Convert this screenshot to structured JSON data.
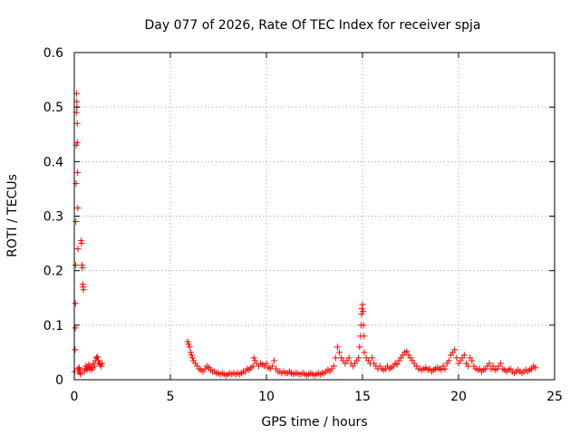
{
  "chart_data": {
    "type": "scatter",
    "title": "Day 077 of 2026, Rate Of TEC Index for receiver spja",
    "xlabel": "GPS time / hours",
    "ylabel": "ROTI / TECUs",
    "xlim": [
      0,
      25
    ],
    "ylim": [
      0,
      0.6
    ],
    "xticks": [
      0,
      5,
      10,
      15,
      20,
      25
    ],
    "yticks": [
      0,
      0.1,
      0.2,
      0.3,
      0.4,
      0.5,
      0.6
    ],
    "xtick_labels": [
      "0",
      "5",
      "10",
      "15",
      "20",
      "25"
    ],
    "ytick_labels": [
      "0",
      "0.1",
      "0.2",
      "0.3",
      "0.4",
      "0.5",
      "0.6"
    ],
    "grid": true,
    "marker": "+",
    "color": "#ff0000",
    "series": [
      {
        "points": [
          [
            0.02,
            0.015
          ],
          [
            0.04,
            0.055
          ],
          [
            0.05,
            0.095
          ],
          [
            0.06,
            0.14
          ],
          [
            0.07,
            0.21
          ],
          [
            0.08,
            0.29
          ],
          [
            0.09,
            0.36
          ],
          [
            0.1,
            0.43
          ],
          [
            0.11,
            0.49
          ],
          [
            0.12,
            0.525
          ],
          [
            0.13,
            0.51
          ],
          [
            0.14,
            0.5
          ],
          [
            0.15,
            0.47
          ],
          [
            0.16,
            0.435
          ],
          [
            0.17,
            0.38
          ],
          [
            0.18,
            0.315
          ],
          [
            0.19,
            0.24
          ],
          [
            0.2,
            0.02
          ],
          [
            0.22,
            0.015
          ],
          [
            0.25,
            0.022
          ],
          [
            0.28,
            0.018
          ],
          [
            0.3,
            0.012
          ],
          [
            0.32,
            0.01
          ],
          [
            0.35,
            0.255
          ],
          [
            0.38,
            0.25
          ],
          [
            0.4,
            0.21
          ],
          [
            0.42,
            0.205
          ],
          [
            0.44,
            0.175
          ],
          [
            0.46,
            0.17
          ],
          [
            0.48,
            0.165
          ],
          [
            0.52,
            0.015
          ],
          [
            0.55,
            0.02
          ],
          [
            0.6,
            0.025
          ],
          [
            0.65,
            0.018
          ],
          [
            0.7,
            0.022
          ],
          [
            0.75,
            0.028
          ],
          [
            0.8,
            0.02
          ],
          [
            0.85,
            0.025
          ],
          [
            0.9,
            0.018
          ],
          [
            0.95,
            0.022
          ],
          [
            1.0,
            0.03
          ],
          [
            1.05,
            0.025
          ],
          [
            1.1,
            0.035
          ],
          [
            1.15,
            0.04
          ],
          [
            1.2,
            0.042
          ],
          [
            1.25,
            0.035
          ],
          [
            1.3,
            0.03
          ],
          [
            1.35,
            0.028
          ],
          [
            1.4,
            0.025
          ],
          [
            1.45,
            0.03
          ],
          [
            5.9,
            0.07
          ],
          [
            5.95,
            0.065
          ],
          [
            6.0,
            0.06
          ],
          [
            6.05,
            0.05
          ],
          [
            6.1,
            0.045
          ],
          [
            6.15,
            0.04
          ],
          [
            6.2,
            0.035
          ],
          [
            6.3,
            0.03
          ],
          [
            6.4,
            0.025
          ],
          [
            6.5,
            0.02
          ],
          [
            6.6,
            0.018
          ],
          [
            6.7,
            0.015
          ],
          [
            6.8,
            0.02
          ],
          [
            6.9,
            0.025
          ],
          [
            7.0,
            0.022
          ],
          [
            7.1,
            0.018
          ],
          [
            7.2,
            0.015
          ],
          [
            7.3,
            0.015
          ],
          [
            7.4,
            0.012
          ],
          [
            7.5,
            0.012
          ],
          [
            7.6,
            0.01
          ],
          [
            7.7,
            0.012
          ],
          [
            7.8,
            0.01
          ],
          [
            7.9,
            0.008
          ],
          [
            8.0,
            0.01
          ],
          [
            8.1,
            0.012
          ],
          [
            8.2,
            0.01
          ],
          [
            8.3,
            0.012
          ],
          [
            8.4,
            0.01
          ],
          [
            8.5,
            0.012
          ],
          [
            8.6,
            0.01
          ],
          [
            8.7,
            0.012
          ],
          [
            8.8,
            0.015
          ],
          [
            8.9,
            0.015
          ],
          [
            9.0,
            0.02
          ],
          [
            9.1,
            0.018
          ],
          [
            9.2,
            0.022
          ],
          [
            9.3,
            0.025
          ],
          [
            9.35,
            0.04
          ],
          [
            9.4,
            0.035
          ],
          [
            9.5,
            0.03
          ],
          [
            9.6,
            0.025
          ],
          [
            9.7,
            0.03
          ],
          [
            9.8,
            0.028
          ],
          [
            9.9,
            0.025
          ],
          [
            10.0,
            0.03
          ],
          [
            10.1,
            0.022
          ],
          [
            10.2,
            0.02
          ],
          [
            10.3,
            0.025
          ],
          [
            10.4,
            0.035
          ],
          [
            10.5,
            0.02
          ],
          [
            10.6,
            0.015
          ],
          [
            10.7,
            0.015
          ],
          [
            10.8,
            0.012
          ],
          [
            10.9,
            0.015
          ],
          [
            11.0,
            0.012
          ],
          [
            11.1,
            0.012
          ],
          [
            11.2,
            0.015
          ],
          [
            11.3,
            0.012
          ],
          [
            11.4,
            0.01
          ],
          [
            11.5,
            0.012
          ],
          [
            11.6,
            0.012
          ],
          [
            11.7,
            0.01
          ],
          [
            11.8,
            0.01
          ],
          [
            11.9,
            0.012
          ],
          [
            12.0,
            0.01
          ],
          [
            12.1,
            0.008
          ],
          [
            12.2,
            0.01
          ],
          [
            12.3,
            0.012
          ],
          [
            12.4,
            0.01
          ],
          [
            12.5,
            0.008
          ],
          [
            12.6,
            0.01
          ],
          [
            12.7,
            0.012
          ],
          [
            12.8,
            0.01
          ],
          [
            12.9,
            0.012
          ],
          [
            13.0,
            0.012
          ],
          [
            13.1,
            0.015
          ],
          [
            13.2,
            0.018
          ],
          [
            13.3,
            0.015
          ],
          [
            13.4,
            0.02
          ],
          [
            13.5,
            0.025
          ],
          [
            13.6,
            0.04
          ],
          [
            13.7,
            0.06
          ],
          [
            13.8,
            0.05
          ],
          [
            13.9,
            0.04
          ],
          [
            14.0,
            0.035
          ],
          [
            14.1,
            0.03
          ],
          [
            14.2,
            0.035
          ],
          [
            14.3,
            0.04
          ],
          [
            14.4,
            0.03
          ],
          [
            14.5,
            0.025
          ],
          [
            14.6,
            0.03
          ],
          [
            14.7,
            0.035
          ],
          [
            14.8,
            0.04
          ],
          [
            14.85,
            0.06
          ],
          [
            14.9,
            0.08
          ],
          [
            14.92,
            0.1
          ],
          [
            14.95,
            0.12
          ],
          [
            14.97,
            0.13
          ],
          [
            15.0,
            0.138
          ],
          [
            15.03,
            0.125
          ],
          [
            15.05,
            0.1
          ],
          [
            15.08,
            0.08
          ],
          [
            15.1,
            0.05
          ],
          [
            15.2,
            0.04
          ],
          [
            15.3,
            0.035
          ],
          [
            15.4,
            0.03
          ],
          [
            15.5,
            0.04
          ],
          [
            15.6,
            0.03
          ],
          [
            15.7,
            0.025
          ],
          [
            15.8,
            0.02
          ],
          [
            15.9,
            0.025
          ],
          [
            16.0,
            0.02
          ],
          [
            16.1,
            0.018
          ],
          [
            16.2,
            0.02
          ],
          [
            16.3,
            0.025
          ],
          [
            16.4,
            0.02
          ],
          [
            16.5,
            0.022
          ],
          [
            16.6,
            0.025
          ],
          [
            16.7,
            0.03
          ],
          [
            16.8,
            0.028
          ],
          [
            16.9,
            0.035
          ],
          [
            17.0,
            0.04
          ],
          [
            17.1,
            0.045
          ],
          [
            17.2,
            0.05
          ],
          [
            17.3,
            0.052
          ],
          [
            17.4,
            0.045
          ],
          [
            17.5,
            0.04
          ],
          [
            17.6,
            0.035
          ],
          [
            17.7,
            0.03
          ],
          [
            17.8,
            0.025
          ],
          [
            17.9,
            0.02
          ],
          [
            18.0,
            0.02
          ],
          [
            18.1,
            0.018
          ],
          [
            18.2,
            0.02
          ],
          [
            18.3,
            0.022
          ],
          [
            18.4,
            0.018
          ],
          [
            18.5,
            0.02
          ],
          [
            18.6,
            0.015
          ],
          [
            18.7,
            0.018
          ],
          [
            18.8,
            0.02
          ],
          [
            18.9,
            0.022
          ],
          [
            19.0,
            0.02
          ],
          [
            19.1,
            0.018
          ],
          [
            19.2,
            0.025
          ],
          [
            19.3,
            0.02
          ],
          [
            19.4,
            0.03
          ],
          [
            19.5,
            0.035
          ],
          [
            19.6,
            0.045
          ],
          [
            19.7,
            0.05
          ],
          [
            19.8,
            0.055
          ],
          [
            19.9,
            0.04
          ],
          [
            20.0,
            0.03
          ],
          [
            20.1,
            0.035
          ],
          [
            20.2,
            0.04
          ],
          [
            20.3,
            0.045
          ],
          [
            20.4,
            0.03
          ],
          [
            20.5,
            0.025
          ],
          [
            20.6,
            0.04
          ],
          [
            20.7,
            0.035
          ],
          [
            20.8,
            0.025
          ],
          [
            20.9,
            0.02
          ],
          [
            21.0,
            0.018
          ],
          [
            21.1,
            0.02
          ],
          [
            21.2,
            0.015
          ],
          [
            21.3,
            0.018
          ],
          [
            21.4,
            0.02
          ],
          [
            21.5,
            0.025
          ],
          [
            21.6,
            0.03
          ],
          [
            21.7,
            0.02
          ],
          [
            21.8,
            0.025
          ],
          [
            21.9,
            0.018
          ],
          [
            22.0,
            0.02
          ],
          [
            22.1,
            0.025
          ],
          [
            22.2,
            0.03
          ],
          [
            22.3,
            0.02
          ],
          [
            22.4,
            0.018
          ],
          [
            22.5,
            0.015
          ],
          [
            22.6,
            0.018
          ],
          [
            22.7,
            0.02
          ],
          [
            22.8,
            0.015
          ],
          [
            22.9,
            0.012
          ],
          [
            23.0,
            0.015
          ],
          [
            23.1,
            0.018
          ],
          [
            23.2,
            0.015
          ],
          [
            23.3,
            0.012
          ],
          [
            23.4,
            0.015
          ],
          [
            23.5,
            0.018
          ],
          [
            23.6,
            0.015
          ],
          [
            23.7,
            0.018
          ],
          [
            23.8,
            0.02
          ],
          [
            23.9,
            0.025
          ],
          [
            24.0,
            0.022
          ]
        ]
      }
    ]
  }
}
